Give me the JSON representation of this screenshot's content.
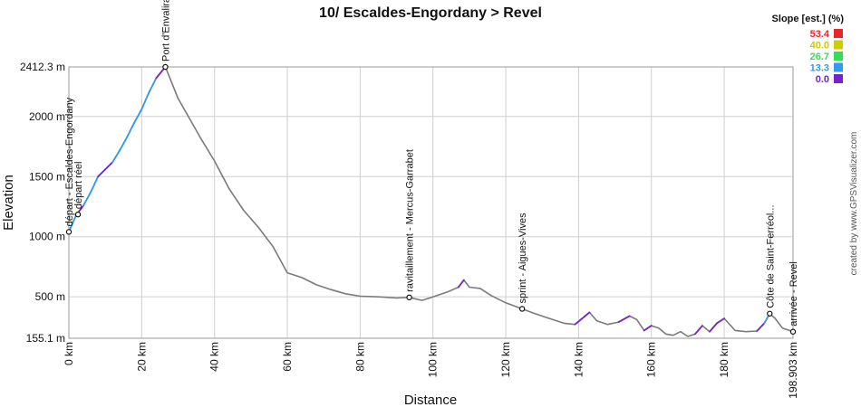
{
  "chart_data": {
    "type": "line",
    "title": "10/ Escaldes-Engordany > Revel",
    "xlabel": "Distance",
    "ylabel": "Elevation",
    "xlim": [
      0,
      198.903
    ],
    "ylim": [
      155.1,
      2412.3
    ],
    "x_ticks": [
      {
        "value": 0,
        "label": "0 km"
      },
      {
        "value": 20,
        "label": "20 km"
      },
      {
        "value": 40,
        "label": "40 km"
      },
      {
        "value": 60,
        "label": "60 km"
      },
      {
        "value": 80,
        "label": "80 km"
      },
      {
        "value": 100,
        "label": "100 km"
      },
      {
        "value": 120,
        "label": "120 km"
      },
      {
        "value": 140,
        "label": "140 km"
      },
      {
        "value": 160,
        "label": "160 km"
      },
      {
        "value": 180,
        "label": "180 km"
      },
      {
        "value": 198.903,
        "label": "198.903 km"
      }
    ],
    "y_ticks": [
      {
        "value": 155.1,
        "label": "155.1 m"
      },
      {
        "value": 500,
        "label": "500 m"
      },
      {
        "value": 1000,
        "label": "1000 m"
      },
      {
        "value": 1500,
        "label": "1500 m"
      },
      {
        "value": 2000,
        "label": "2000 m"
      },
      {
        "value": 2412.3,
        "label": "2412.3 m"
      }
    ],
    "grid": true,
    "series": [
      {
        "x": [
          0,
          2,
          4,
          6,
          8,
          10,
          12,
          14,
          16,
          18,
          20,
          22,
          24,
          26.5,
          28,
          30,
          33,
          36,
          40,
          44,
          48,
          52,
          56,
          60,
          64,
          68,
          72,
          76,
          80,
          85,
          90,
          93.5,
          97,
          100,
          104,
          107,
          108.5,
          110,
          113,
          116,
          120,
          124.5,
          128,
          132,
          136,
          139,
          141,
          143,
          145,
          148,
          151,
          154,
          156,
          158,
          160,
          162,
          164,
          166,
          168,
          170,
          172,
          174,
          176,
          178,
          180,
          183,
          186,
          189,
          191,
          192.5,
          194,
          196,
          198.903
        ],
        "y": [
          1040,
          1180,
          1260,
          1370,
          1500,
          1560,
          1620,
          1720,
          1830,
          1950,
          2060,
          2200,
          2320,
          2412.3,
          2300,
          2150,
          1990,
          1830,
          1630,
          1400,
          1220,
          1080,
          920,
          700,
          660,
          600,
          560,
          525,
          505,
          500,
          490,
          495,
          470,
          500,
          540,
          580,
          640,
          580,
          570,
          510,
          450,
          400,
          360,
          320,
          280,
          270,
          320,
          370,
          300,
          270,
          290,
          340,
          310,
          220,
          260,
          240,
          190,
          180,
          210,
          170,
          190,
          260,
          210,
          280,
          320,
          220,
          210,
          215,
          280,
          360,
          320,
          240,
          210
        ]
      }
    ],
    "waypoints": [
      {
        "x": 0,
        "y": 1040,
        "label": "départ - Escaldes-Engordany"
      },
      {
        "x": 2.5,
        "y": 1185,
        "label": "départ réel"
      },
      {
        "x": 26.5,
        "y": 2412.3,
        "label": "Port d'Envalira"
      },
      {
        "x": 93.5,
        "y": 495,
        "label": "ravitaillement - Mercus-Garrabet"
      },
      {
        "x": 124.5,
        "y": 400,
        "label": "sprint - Aigues-Vives"
      },
      {
        "x": 192.5,
        "y": 360,
        "label": "Côte de Saint-Ferréol..."
      },
      {
        "x": 198.903,
        "y": 210,
        "label": "arrivée - Revel"
      }
    ],
    "legend": {
      "title": "Slope [est.] (%)",
      "placement": "top-right",
      "items": [
        {
          "value": "53.4",
          "color": "#e8262a"
        },
        {
          "value": "40.0",
          "color": "#cccc00"
        },
        {
          "value": "26.7",
          "color": "#33dd55"
        },
        {
          "value": "13.3",
          "color": "#3399ee"
        },
        {
          "value": "0.0",
          "color": "#7722cc"
        }
      ]
    },
    "line_color": "#7a7a7a"
  },
  "credit": "created by www.GPSVisualizer.com"
}
